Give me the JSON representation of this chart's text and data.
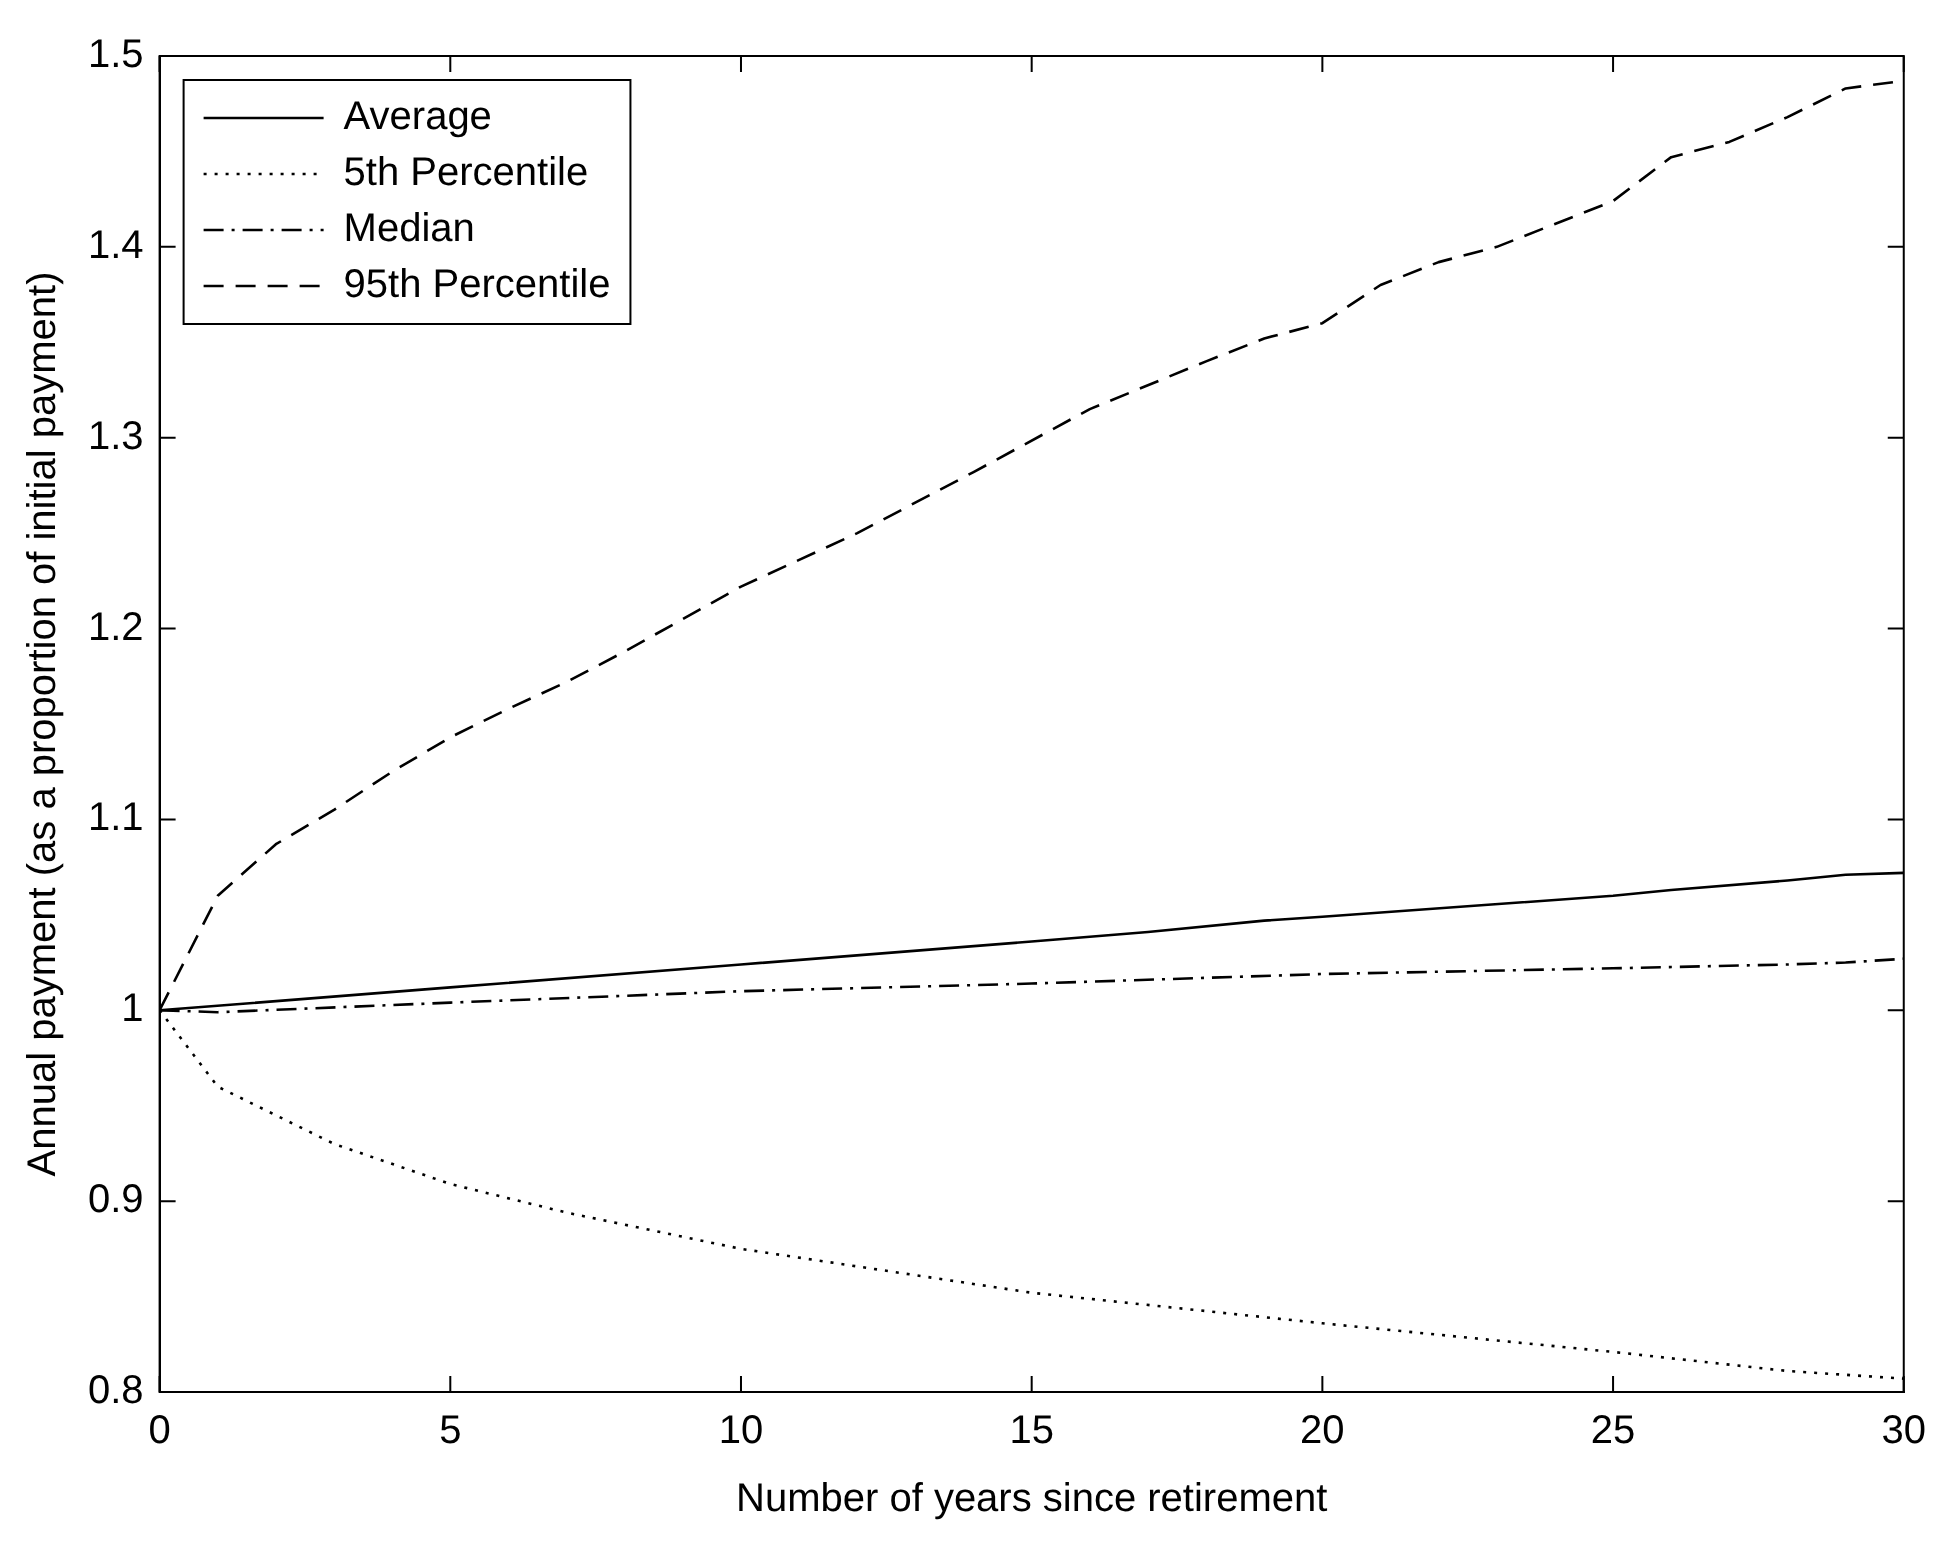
{
  "chart_data": {
    "type": "line",
    "xlabel": "Number of years since retirement",
    "ylabel": "Annual payment (as a proportion of initial payment)",
    "xlim": [
      0,
      30
    ],
    "ylim": [
      0.8,
      1.5
    ],
    "xticks": [
      0,
      5,
      10,
      15,
      20,
      25,
      30
    ],
    "yticks": [
      0.8,
      0.9,
      1,
      1.1,
      1.2,
      1.3,
      1.4,
      1.5
    ],
    "grid": false,
    "legend": "top left",
    "marker": "none",
    "series": [
      {
        "name": "Average",
        "color": "#000000",
        "line_style": "solid",
        "x": [
          0,
          5,
          10,
          15,
          17,
          19,
          20,
          25,
          26,
          28,
          29,
          30
        ],
        "values": [
          1.0,
          1.012,
          1.024,
          1.036,
          1.041,
          1.047,
          1.049,
          1.06,
          1.063,
          1.068,
          1.071,
          1.072
        ]
      },
      {
        "name": "5th Percentile",
        "color": "#000000",
        "line_style": "dotted",
        "x": [
          0,
          1,
          2,
          3,
          5,
          7,
          10,
          15,
          20,
          25,
          28,
          30
        ],
        "values": [
          1.0,
          0.96,
          0.945,
          0.93,
          0.909,
          0.894,
          0.875,
          0.852,
          0.836,
          0.821,
          0.811,
          0.807
        ]
      },
      {
        "name": "Median",
        "color": "#000000",
        "line_style": "dashdot",
        "x": [
          0,
          1,
          5,
          10,
          15,
          20,
          25,
          28,
          29,
          30
        ],
        "values": [
          1.0,
          0.999,
          1.004,
          1.01,
          1.014,
          1.019,
          1.022,
          1.024,
          1.025,
          1.027
        ]
      },
      {
        "name": "95th Percentile",
        "color": "#000000",
        "line_style": "dashed",
        "x": [
          0,
          1,
          2,
          3,
          4,
          5,
          6,
          7,
          8,
          9,
          10,
          12,
          14,
          16,
          18,
          19,
          20,
          21,
          22,
          23,
          24,
          25,
          26,
          27,
          28,
          29,
          30
        ],
        "values": [
          1.0,
          1.06,
          1.087,
          1.105,
          1.125,
          1.143,
          1.158,
          1.172,
          1.188,
          1.205,
          1.222,
          1.25,
          1.282,
          1.315,
          1.34,
          1.352,
          1.36,
          1.38,
          1.392,
          1.4,
          1.412,
          1.424,
          1.447,
          1.455,
          1.468,
          1.483,
          1.487
        ]
      }
    ]
  }
}
